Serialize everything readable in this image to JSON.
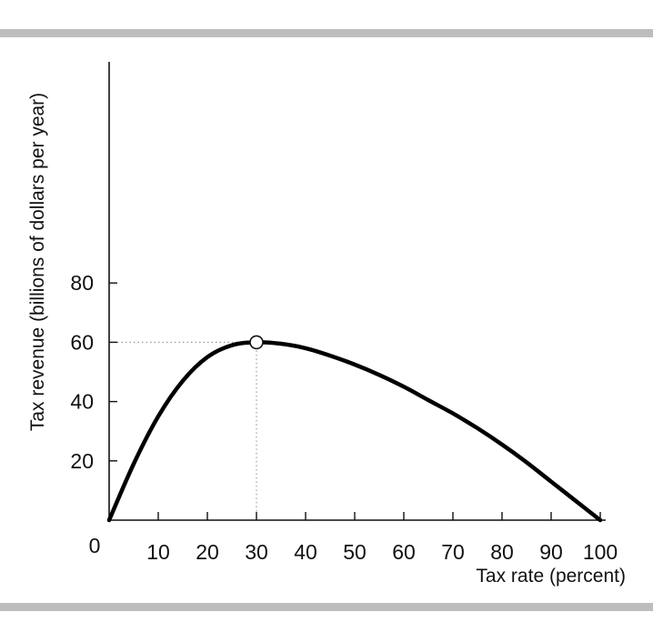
{
  "chart_data": {
    "type": "line",
    "xlabel": "Tax rate (percent)",
    "ylabel": "Tax revenue (billions of dollars per year)",
    "xlim": [
      0,
      100
    ],
    "ylim": [
      0,
      160
    ],
    "origin_label": "0",
    "x_ticks": [
      10,
      20,
      30,
      40,
      50,
      60,
      70,
      80,
      90,
      100
    ],
    "x_tick_labels": [
      "10",
      "20",
      "30",
      "40",
      "50",
      "60",
      "70",
      "80",
      "90",
      "100"
    ],
    "y_ticks": [
      20,
      40,
      60,
      80
    ],
    "y_tick_labels": [
      "20",
      "40",
      "60",
      "80"
    ],
    "grid": false,
    "series": [
      {
        "x": [
          0,
          5,
          10,
          15,
          20,
          25,
          30,
          35,
          40,
          45,
          50,
          55,
          60,
          65,
          70,
          75,
          80,
          85,
          90,
          95,
          100
        ],
        "y": [
          0,
          19,
          35,
          47,
          55,
          59,
          60,
          59.5,
          58,
          55.5,
          52.5,
          49,
          45,
          40.5,
          36,
          31,
          25.5,
          19.5,
          13,
          6.5,
          0
        ],
        "color": "#000000"
      }
    ],
    "marked_point": {
      "x": 30,
      "y": 60
    },
    "guide_lines": "dotted lines from the marked point to both axes"
  },
  "colors": {
    "band": "#bdbdbd",
    "curve": "#000000",
    "axis": "#111111",
    "guide": "#888888",
    "marker_fill": "#ffffff"
  }
}
